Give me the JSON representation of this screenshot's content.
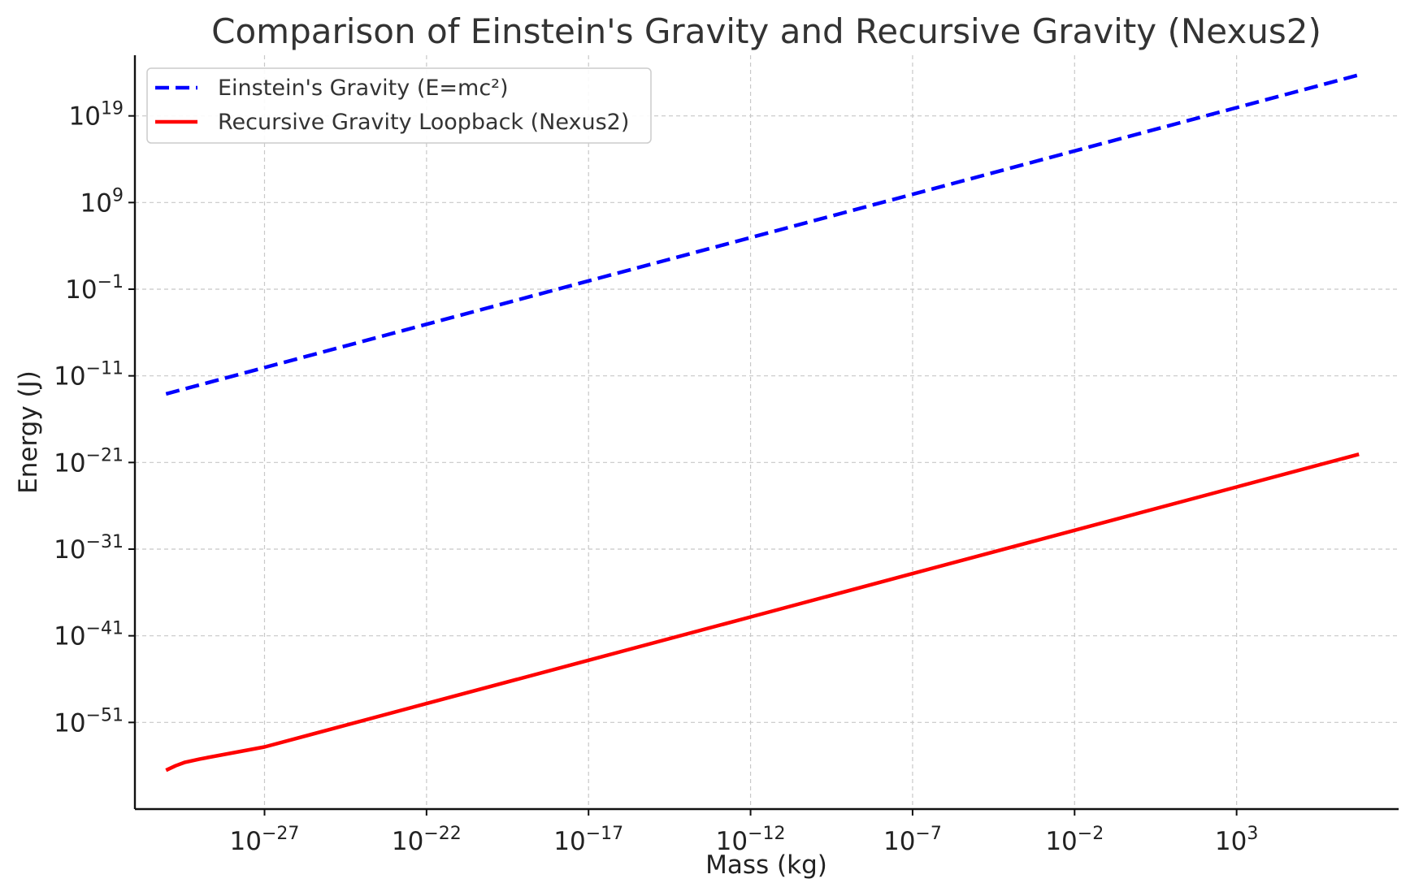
{
  "chart_data": {
    "type": "line",
    "title": "Comparison of Einstein's Gravity and Recursive Gravity (Nexus2)",
    "xlabel": "Mass (kg)",
    "ylabel": "Energy (J)",
    "xscale": "log",
    "yscale": "log",
    "xlim": [
      1e-31,
      100000000.0
    ],
    "ylim": [
      1e-61,
      1e+26
    ],
    "x_ticks": [
      {
        "value": 1e-27,
        "base": "10",
        "exp": "−27"
      },
      {
        "value": 1e-22,
        "base": "10",
        "exp": "−22"
      },
      {
        "value": 1e-17,
        "base": "10",
        "exp": "−17"
      },
      {
        "value": 1e-12,
        "base": "10",
        "exp": "−12"
      },
      {
        "value": 1e-07,
        "base": "10",
        "exp": "−7"
      },
      {
        "value": 0.01,
        "base": "10",
        "exp": "−2"
      },
      {
        "value": 1000.0,
        "base": "10",
        "exp": "3"
      }
    ],
    "y_ticks": [
      {
        "value": 1e+19,
        "base": "10",
        "exp": "19"
      },
      {
        "value": 1000000000.0,
        "base": "10",
        "exp": "9"
      },
      {
        "value": 0.1,
        "base": "10",
        "exp": "−1"
      },
      {
        "value": 1e-11,
        "base": "10",
        "exp": "−11"
      },
      {
        "value": 1e-21,
        "base": "10",
        "exp": "−21"
      },
      {
        "value": 1e-31,
        "base": "10",
        "exp": "−31"
      },
      {
        "value": 1e-41,
        "base": "10",
        "exp": "−41"
      },
      {
        "value": 1e-51,
        "base": "10",
        "exp": "−51"
      }
    ],
    "grid": true,
    "legend_position": "top-left",
    "series": [
      {
        "name": "Einstein's Gravity (E=mc²)",
        "color": "#0000ff",
        "style": "dashed",
        "x": [
          9.11e-31,
          1e-27,
          1e-22,
          1e-17,
          1e-12,
          1e-07,
          0.01,
          1000.0,
          5970000.0
        ],
        "y": [
          8.19e-14,
          9e-11,
          9e-06,
          0.9,
          90000.0,
          9000000000.0,
          900000000000000.0,
          9e+19,
          5.37e+23
        ]
      },
      {
        "name": "Recursive Gravity Loopback (Nexus2)",
        "color": "#ff0000",
        "style": "solid",
        "x": [
          9.11e-31,
          1.8e-30,
          3.5e-30,
          1e-29,
          1e-27,
          1e-22,
          1e-17,
          1e-12,
          1e-07,
          0.01,
          1000.0,
          5970000.0
        ],
        "y": [
          3e-57,
          1e-56,
          2.5e-56,
          6e-56,
          1.5e-54,
          1.5e-49,
          1.5e-44,
          1.5e-39,
          1.5e-34,
          1.5e-29,
          1.5e-24,
          9e-21
        ]
      }
    ]
  }
}
